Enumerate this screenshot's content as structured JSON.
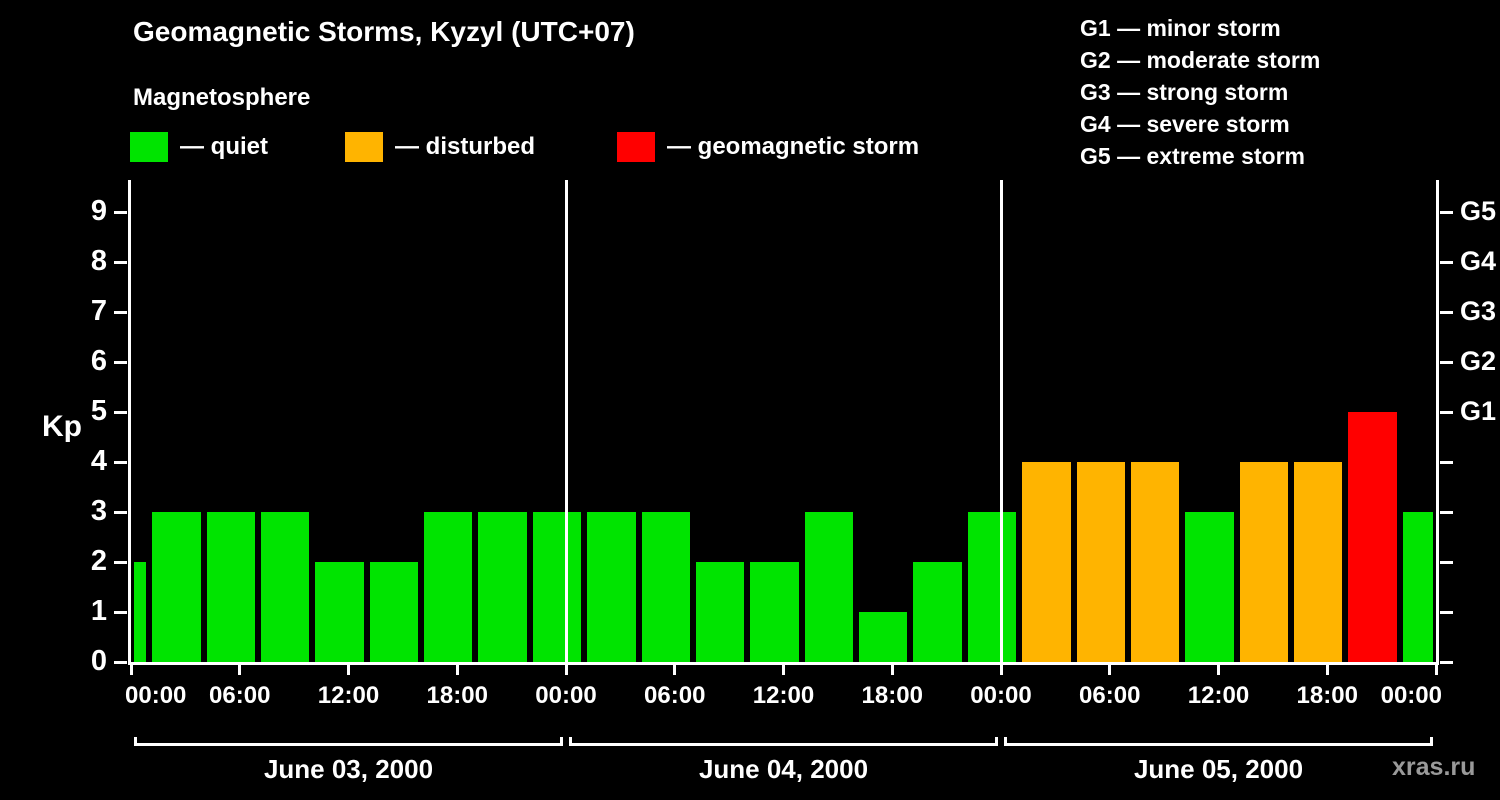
{
  "header": {
    "subtitle": "Magnetosphere"
  },
  "legend": {
    "items": [
      {
        "label": "— quiet",
        "status": "quiet"
      },
      {
        "label": "— disturbed",
        "status": "disturbed"
      },
      {
        "label": "— geomagnetic storm",
        "status": "storm"
      }
    ]
  },
  "g_legend": [
    "G1 — minor storm",
    "G2 — moderate storm",
    "G3 — strong storm",
    "G4 — severe storm",
    "G5 — extreme storm"
  ],
  "watermark": "xras.ru",
  "chart_data": {
    "type": "bar",
    "title": "Geomagnetic Storms, Kyzyl (UTC+07)",
    "ylabel": "Kp",
    "ylim": [
      0,
      9
    ],
    "x_hours_total": 72,
    "grid": "off",
    "kp_ticks": [
      0,
      1,
      2,
      3,
      4,
      5,
      6,
      7,
      8,
      9
    ],
    "g_scale": [
      {
        "label": "G1",
        "kp": 5
      },
      {
        "label": "G2",
        "kp": 6
      },
      {
        "label": "G3",
        "kp": 7
      },
      {
        "label": "G4",
        "kp": 8
      },
      {
        "label": "G5",
        "kp": 9
      }
    ],
    "time_ticks": [
      {
        "hour": 0,
        "label": "00:00"
      },
      {
        "hour": 6,
        "label": "06:00"
      },
      {
        "hour": 12,
        "label": "12:00"
      },
      {
        "hour": 18,
        "label": "18:00"
      },
      {
        "hour": 24,
        "label": "00:00"
      },
      {
        "hour": 30,
        "label": "06:00"
      },
      {
        "hour": 36,
        "label": "12:00"
      },
      {
        "hour": 42,
        "label": "18:00"
      },
      {
        "hour": 48,
        "label": "00:00"
      },
      {
        "hour": 54,
        "label": "06:00"
      },
      {
        "hour": 60,
        "label": "12:00"
      },
      {
        "hour": 66,
        "label": "18:00"
      },
      {
        "hour": 72,
        "label": "00:00"
      }
    ],
    "days": [
      {
        "label": "June 03, 2000",
        "start_hour": 0,
        "end_hour": 24
      },
      {
        "label": "June 04, 2000",
        "start_hour": 24,
        "end_hour": 48
      },
      {
        "label": "June 05, 2000",
        "start_hour": 48,
        "end_hour": 72
      }
    ],
    "dividers_hours": [
      24,
      48
    ],
    "status_colors": {
      "quiet": "#00e400",
      "disturbed": "#ffb400",
      "storm": "#ff0000"
    },
    "bars": [
      {
        "start": 0,
        "end": 1,
        "kp": 2,
        "status": "quiet"
      },
      {
        "start": 1,
        "end": 4,
        "kp": 3,
        "status": "quiet"
      },
      {
        "start": 4,
        "end": 7,
        "kp": 3,
        "status": "quiet"
      },
      {
        "start": 7,
        "end": 10,
        "kp": 3,
        "status": "quiet"
      },
      {
        "start": 10,
        "end": 13,
        "kp": 2,
        "status": "quiet"
      },
      {
        "start": 13,
        "end": 16,
        "kp": 2,
        "status": "quiet"
      },
      {
        "start": 16,
        "end": 19,
        "kp": 3,
        "status": "quiet"
      },
      {
        "start": 19,
        "end": 22,
        "kp": 3,
        "status": "quiet"
      },
      {
        "start": 22,
        "end": 25,
        "kp": 3,
        "status": "quiet"
      },
      {
        "start": 25,
        "end": 28,
        "kp": 3,
        "status": "quiet"
      },
      {
        "start": 28,
        "end": 31,
        "kp": 3,
        "status": "quiet"
      },
      {
        "start": 31,
        "end": 34,
        "kp": 2,
        "status": "quiet"
      },
      {
        "start": 34,
        "end": 37,
        "kp": 2,
        "status": "quiet"
      },
      {
        "start": 37,
        "end": 40,
        "kp": 3,
        "status": "quiet"
      },
      {
        "start": 40,
        "end": 43,
        "kp": 1,
        "status": "quiet"
      },
      {
        "start": 43,
        "end": 46,
        "kp": 2,
        "status": "quiet"
      },
      {
        "start": 46,
        "end": 49,
        "kp": 3,
        "status": "quiet"
      },
      {
        "start": 49,
        "end": 52,
        "kp": 4,
        "status": "disturbed"
      },
      {
        "start": 52,
        "end": 55,
        "kp": 4,
        "status": "disturbed"
      },
      {
        "start": 55,
        "end": 58,
        "kp": 4,
        "status": "disturbed"
      },
      {
        "start": 58,
        "end": 61,
        "kp": 3,
        "status": "quiet"
      },
      {
        "start": 61,
        "end": 64,
        "kp": 4,
        "status": "disturbed"
      },
      {
        "start": 64,
        "end": 67,
        "kp": 4,
        "status": "disturbed"
      },
      {
        "start": 67,
        "end": 70,
        "kp": 5,
        "status": "storm"
      },
      {
        "start": 70,
        "end": 72,
        "kp": 3,
        "status": "quiet"
      }
    ]
  }
}
